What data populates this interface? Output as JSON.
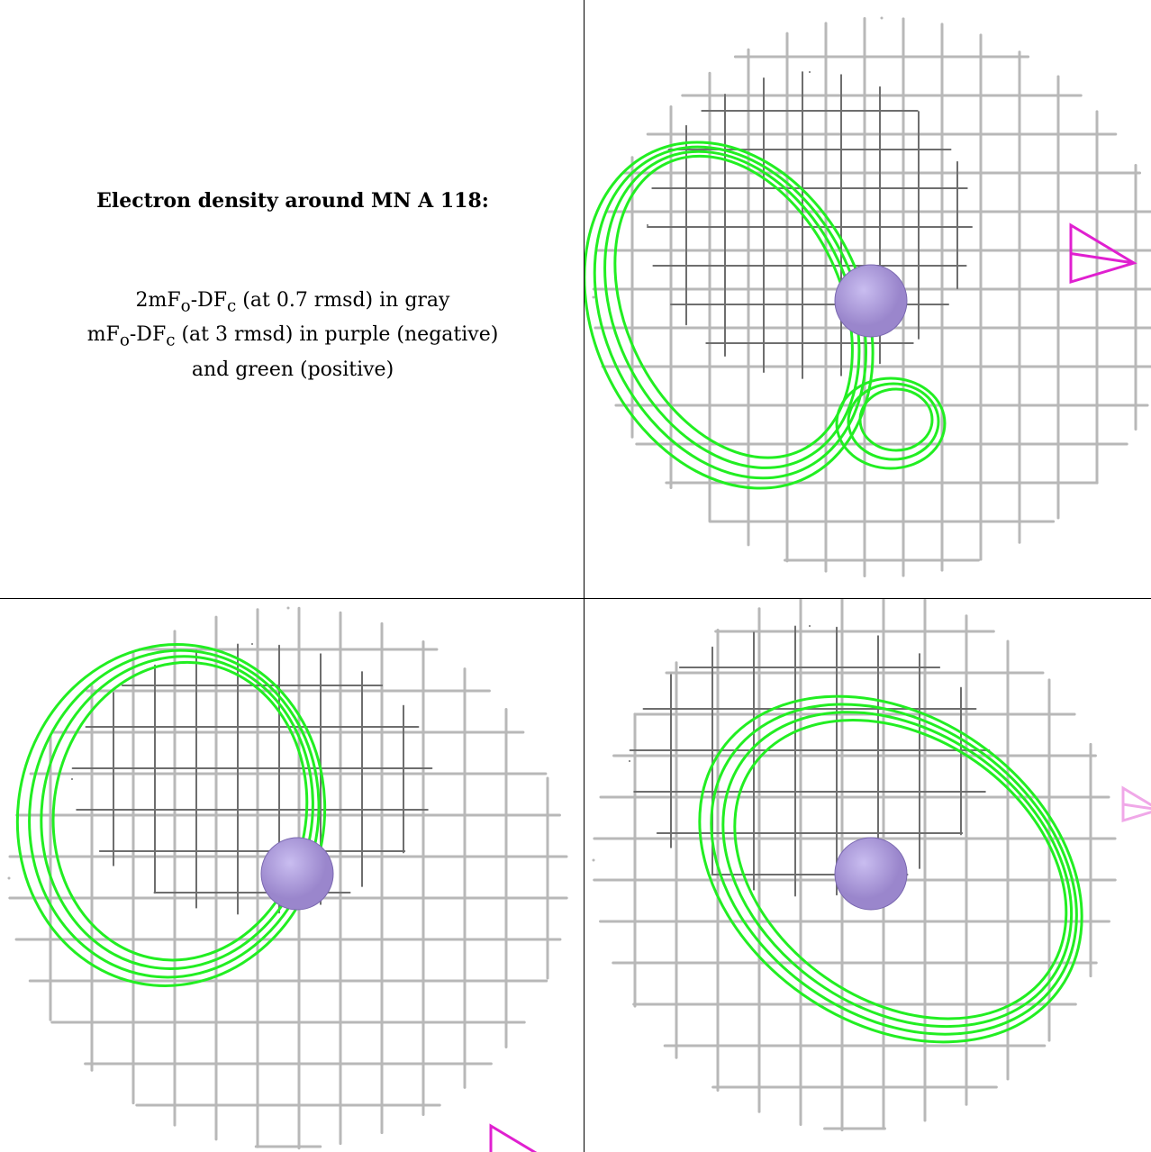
{
  "caption": {
    "title": "Electron density around MN A 118:",
    "line1_a": "2mF",
    "line1_sub_o": "o",
    "line1_b": "-DF",
    "line1_sub_c": "c",
    "line1_c": " (at 0.7 rmsd) in gray",
    "line2_a": "mF",
    "line2_sub_o": "o",
    "line2_b": "-DF",
    "line2_sub_c": "c",
    "line2_c": " (at 3 rmsd) in purple (negative)",
    "line3": "and green (positive)"
  },
  "colors": {
    "gray_mesh": "#b8b8b8",
    "dark_mesh": "#6e6e6e",
    "green_mesh": "#22ee22",
    "magenta_mesh": "#e020d0",
    "atom": "#9a86cc"
  },
  "panels": [
    {
      "name": "view-top-right",
      "atom": "MN",
      "negative_marker": true
    },
    {
      "name": "view-bottom-left",
      "atom": "MN",
      "negative_marker": true
    },
    {
      "name": "view-bottom-right",
      "atom": "MN",
      "negative_marker": true
    }
  ]
}
